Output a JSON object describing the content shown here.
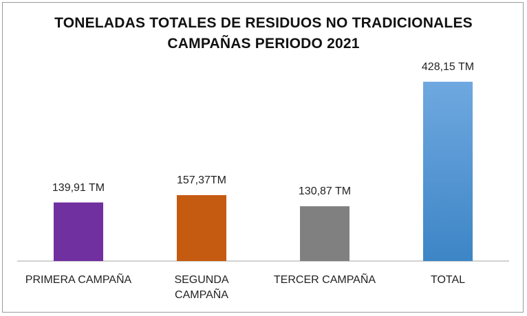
{
  "chart_data": {
    "type": "bar",
    "title_line1": "TONELADAS TOTALES DE  RESIDUOS NO TRADICIONALES",
    "title_line2": "CAMPAÑAS PERIODO 2021",
    "categories": [
      "PRIMERA CAMPAÑA",
      "SEGUNDA CAMPAÑA",
      "TERCER CAMPAÑA",
      "TOTAL"
    ],
    "category_label_lines": [
      [
        "PRIMERA CAMPAÑA"
      ],
      [
        "SEGUNDA",
        "CAMPAÑA"
      ],
      [
        "TERCER CAMPAÑA"
      ],
      [
        "TOTAL"
      ]
    ],
    "values": [
      139.91,
      157.37,
      130.87,
      428.15
    ],
    "data_labels": [
      "139,91 TM",
      "157,37TM",
      "130,87 TM",
      "428,15 TM"
    ],
    "colors": [
      "#7030a0",
      "#c55a11",
      "#808080",
      "#5b9bd5"
    ],
    "ylim": [
      0,
      480
    ],
    "grid": false,
    "legend": "none"
  }
}
